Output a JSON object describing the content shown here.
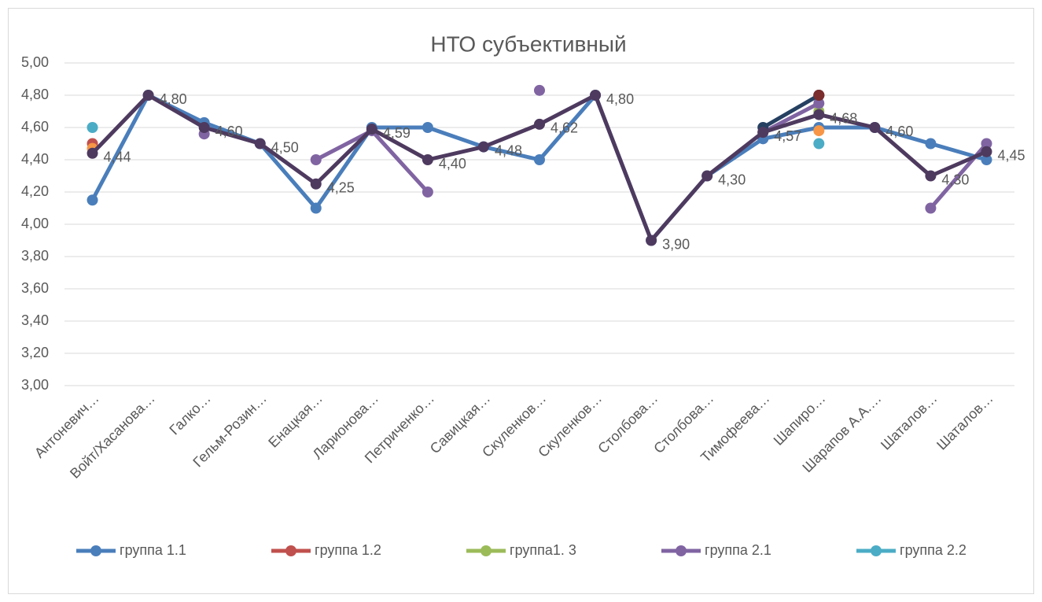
{
  "chart_data": {
    "type": "line",
    "title": "НТО субъективный",
    "categories": [
      "Антоневич…",
      "Войт/Хасанова…",
      "Галко…",
      "Гельм-Розин…",
      "Енацкая…",
      "Ларионова…",
      "Петриченко…",
      "Савицкая…",
      "Скуленков…",
      "Скуленков…",
      "Столбова…",
      "Столбова…",
      "Тимофеева…",
      "Шапиро…",
      "Шарапов А.А.…",
      "Шаталов…",
      "Шаталов…"
    ],
    "ylim": [
      3,
      5
    ],
    "yticks": [
      {
        "value": 3,
        "label": "3,00"
      },
      {
        "value": 3.2,
        "label": "3,20"
      },
      {
        "value": 3.4,
        "label": "3,40"
      },
      {
        "value": 3.6,
        "label": "3,60"
      },
      {
        "value": 3.8,
        "label": "3,80"
      },
      {
        "value": 4,
        "label": "4,00"
      },
      {
        "value": 4.2,
        "label": "4,20"
      },
      {
        "value": 4.4,
        "label": "4,40"
      },
      {
        "value": 4.6,
        "label": "4,60"
      },
      {
        "value": 4.8,
        "label": "4,80"
      },
      {
        "value": 5,
        "label": "5,00"
      }
    ],
    "grid": true,
    "legend": "bottom",
    "series": [
      {
        "name": "группа 1.1",
        "color": "#4a7ebb",
        "values": [
          4.15,
          4.8,
          4.63,
          4.5,
          4.1,
          4.6,
          4.6,
          4.48,
          4.4,
          4.8,
          3.9,
          4.3,
          4.53,
          4.6,
          4.6,
          4.5,
          4.4
        ]
      },
      {
        "name": "группа 1.2",
        "color": "#c0504d",
        "values": [
          4.5,
          null,
          null,
          null,
          null,
          null,
          null,
          null,
          null,
          null,
          null,
          null,
          null,
          4.8,
          null,
          null,
          null
        ]
      },
      {
        "name": "группа1. 3",
        "color": "#9bbb59",
        "values": [
          null,
          null,
          null,
          null,
          null,
          null,
          null,
          null,
          null,
          null,
          null,
          null,
          null,
          4.7,
          null,
          null,
          null
        ]
      },
      {
        "name": "группа 2.1",
        "color": "#8064a2",
        "values": [
          null,
          null,
          4.56,
          null,
          4.4,
          4.58,
          4.2,
          null,
          4.83,
          null,
          null,
          null,
          4.57,
          4.75,
          null,
          4.1,
          4.5
        ]
      },
      {
        "name": "группа 2.2",
        "color": "#4bacc6",
        "values": [
          4.6,
          null,
          null,
          null,
          null,
          null,
          null,
          null,
          null,
          null,
          null,
          null,
          null,
          4.5,
          null,
          null,
          null
        ]
      },
      {
        "color": "#f79646",
        "values": [
          4.47,
          null,
          null,
          null,
          null,
          null,
          null,
          null,
          null,
          null,
          null,
          null,
          null,
          4.58,
          null,
          null,
          null
        ]
      },
      {
        "color": "#254061",
        "values": [
          null,
          null,
          null,
          null,
          null,
          null,
          null,
          null,
          null,
          null,
          null,
          null,
          4.6,
          4.8,
          null,
          null,
          null
        ]
      },
      {
        "color": "#7b2c2c",
        "values": [
          null,
          null,
          null,
          null,
          null,
          null,
          null,
          null,
          null,
          null,
          null,
          null,
          null,
          4.8,
          null,
          null,
          null
        ]
      },
      {
        "color": "#4e3a5f",
        "values": [
          4.44,
          4.8,
          4.6,
          4.5,
          4.25,
          4.59,
          4.4,
          4.48,
          4.62,
          4.8,
          3.9,
          4.3,
          4.57,
          4.68,
          4.6,
          4.3,
          4.45
        ],
        "value_labels": [
          "4,44",
          "4,80",
          "4,60",
          "4,50",
          "4,25",
          "4,59",
          "4,40",
          "4,48",
          "4,62",
          "4,80",
          "3,90",
          "4,30",
          "4,57",
          "4,68",
          "4,60",
          "4,30",
          "4,45"
        ]
      }
    ]
  }
}
